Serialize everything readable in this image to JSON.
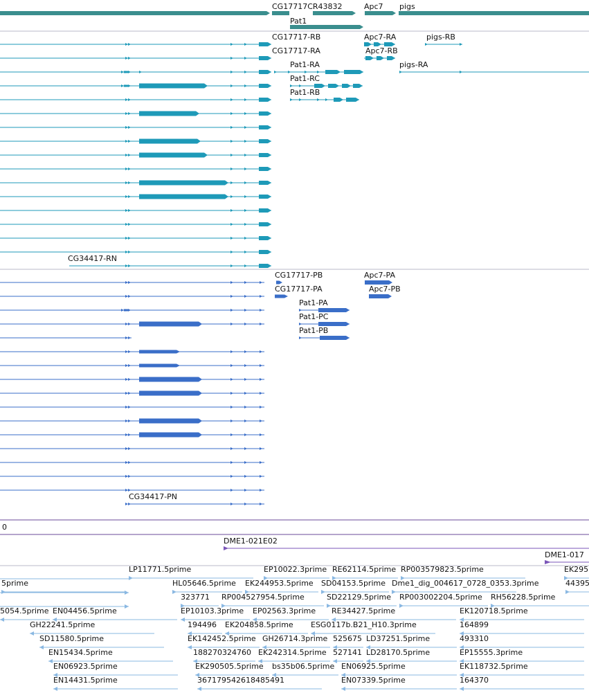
{
  "colors": {
    "gene": "#3a8e8e",
    "mrna": "#1e9ab8",
    "cds": "#3a6ec8",
    "clone": "#7a55b8",
    "est": "#8ab8e2",
    "separator": "#b9b9c9",
    "scale_line": "#6a4a9a"
  },
  "gene_labels": [
    {
      "key": "cg17717cr43832",
      "text": "CG17717CR43832"
    },
    {
      "key": "apc7",
      "text": "Apc7"
    },
    {
      "key": "pigs",
      "text": "pigs"
    },
    {
      "key": "pat1",
      "text": "Pat1"
    }
  ],
  "transcript_labels": [
    {
      "key": "cg17717-rb",
      "text": "CG17717-RB"
    },
    {
      "key": "apc7-ra",
      "text": "Apc7-RA"
    },
    {
      "key": "pigs-rb",
      "text": "pigs-RB"
    },
    {
      "key": "cg17717-ra",
      "text": "CG17717-RA"
    },
    {
      "key": "apc7-rb",
      "text": "Apc7-RB"
    },
    {
      "key": "pat1-ra",
      "text": "Pat1-RA"
    },
    {
      "key": "pigs-ra",
      "text": "pigs-RA"
    },
    {
      "key": "pat1-rc",
      "text": "Pat1-RC"
    },
    {
      "key": "pat1-rb",
      "text": "Pat1-RB"
    },
    {
      "key": "cg34417-rn",
      "text": "CG34417-RN"
    }
  ],
  "protein_labels": [
    {
      "key": "cg17717-pb",
      "text": "CG17717-PB"
    },
    {
      "key": "apc7-pa",
      "text": "Apc7-PA"
    },
    {
      "key": "cg17717-pa",
      "text": "CG17717-PA"
    },
    {
      "key": "apc7-pb",
      "text": "Apc7-PB"
    },
    {
      "key": "pat1-pa",
      "text": "Pat1-PA"
    },
    {
      "key": "pat1-pc",
      "text": "Pat1-PC"
    },
    {
      "key": "pat1-pb",
      "text": "Pat1-PB"
    },
    {
      "key": "cg34417-pn",
      "text": "CG34417-PN"
    }
  ],
  "scale_label": "0",
  "clone_labels": [
    {
      "key": "dme1-021e02",
      "text": "DME1-021E02"
    },
    {
      "key": "dme1-017",
      "text": "DME1-017"
    }
  ],
  "est_labels": [
    {
      "key": "lp11771",
      "text": "LP11771.5prime"
    },
    {
      "key": "ep10022",
      "text": "EP10022.3prime"
    },
    {
      "key": "re62114",
      "text": "RE62114.5prime"
    },
    {
      "key": "rp003579823",
      "text": "RP003579823.5prime"
    },
    {
      "key": "ek295",
      "text": "EK295"
    },
    {
      "key": "5prime-cut",
      "text": "5prime"
    },
    {
      "key": "hl05646",
      "text": "HL05646.5prime"
    },
    {
      "key": "ek244953",
      "text": "EK244953.5prime"
    },
    {
      "key": "sd04153",
      "text": "SD04153.5prime"
    },
    {
      "key": "dme1-dig",
      "text": "Dme1_dig_004617_0728_0353.3prime"
    },
    {
      "key": "44395",
      "text": "44395"
    },
    {
      "key": "323771",
      "text": "323771"
    },
    {
      "key": "rp004527954",
      "text": "RP004527954.5prime"
    },
    {
      "key": "sd22129",
      "text": "SD22129.5prime"
    },
    {
      "key": "rp003002204",
      "text": "RP003002204.5prime"
    },
    {
      "key": "rh56228",
      "text": "RH56228.5prime"
    },
    {
      "key": "5054",
      "text": "5054.5prime"
    },
    {
      "key": "en04456",
      "text": "EN04456.5prime"
    },
    {
      "key": "ep10103",
      "text": "EP10103.3prime"
    },
    {
      "key": "ep02563",
      "text": "EP02563.3prime"
    },
    {
      "key": "re34427",
      "text": "RE34427.5prime"
    },
    {
      "key": "ek120718",
      "text": "EK120718.5prime"
    },
    {
      "key": "gh22241",
      "text": "GH22241.5prime"
    },
    {
      "key": "194496",
      "text": "194496"
    },
    {
      "key": "ek204858",
      "text": "EK204858.5prime"
    },
    {
      "key": "esg0117b",
      "text": "ESG0117b.B21_H10.3prime"
    },
    {
      "key": "164899",
      "text": "164899"
    },
    {
      "key": "sd11580",
      "text": "SD11580.5prime"
    },
    {
      "key": "ek142452",
      "text": "EK142452.5prime"
    },
    {
      "key": "gh26714",
      "text": "GH26714.3prime"
    },
    {
      "key": "525675",
      "text": "525675"
    },
    {
      "key": "ld37251",
      "text": "LD37251.5prime"
    },
    {
      "key": "493310",
      "text": "493310"
    },
    {
      "key": "en15434",
      "text": "EN15434.5prime"
    },
    {
      "key": "188270324760",
      "text": "188270324760"
    },
    {
      "key": "ek242314",
      "text": "EK242314.5prime"
    },
    {
      "key": "527141",
      "text": "527141"
    },
    {
      "key": "ld28170",
      "text": "LD28170.5prime"
    },
    {
      "key": "ep15555",
      "text": "EP15555.3prime"
    },
    {
      "key": "en06923",
      "text": "EN06923.5prime"
    },
    {
      "key": "ek290505",
      "text": "EK290505.5prime"
    },
    {
      "key": "bs35b06",
      "text": "bs35b06.5prime"
    },
    {
      "key": "en06925",
      "text": "EN06925.5prime"
    },
    {
      "key": "ek118732",
      "text": "EK118732.5prime"
    },
    {
      "key": "en14431",
      "text": "EN14431.5prime"
    },
    {
      "key": "367179542618485491",
      "text": "367179542618485491"
    },
    {
      "key": "en07339",
      "text": "EN07339.5prime"
    },
    {
      "key": "164370",
      "text": "164370"
    }
  ]
}
